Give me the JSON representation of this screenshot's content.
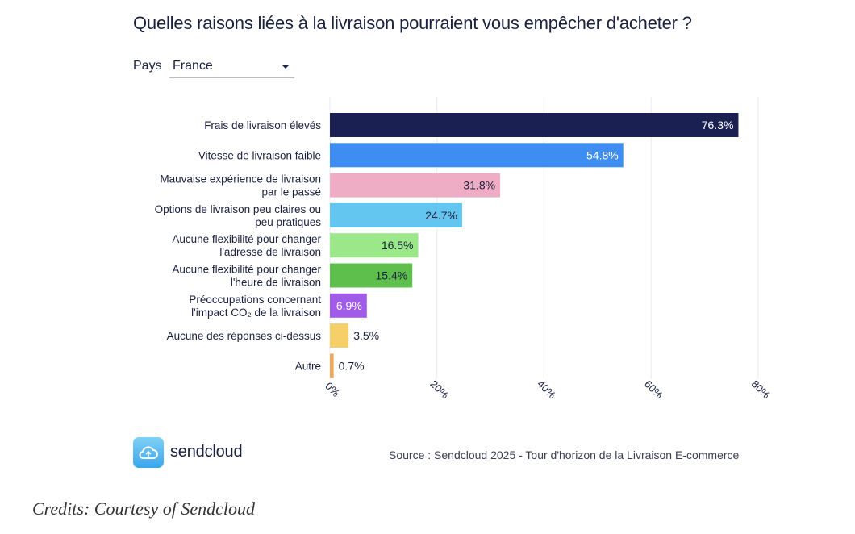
{
  "title": "Quelles raisons liées à la livraison pourraient vous empêcher d'acheter ?",
  "filter": {
    "label": "Pays",
    "value": "France"
  },
  "chart_data": {
    "type": "bar",
    "orientation": "horizontal",
    "categories": [
      [
        "Frais de livraison élevés"
      ],
      [
        "Vitesse de livraison faible"
      ],
      [
        "Mauvaise expérience de livraison",
        "par le passé"
      ],
      [
        "Options de livraison peu claires ou",
        "peu pratiques"
      ],
      [
        "Aucune flexibilité pour changer",
        "l'adresse de livraison"
      ],
      [
        "Aucune flexibilité pour changer",
        "l'heure de livraison"
      ],
      [
        "Préoccupations concernant",
        "l'impact CO₂ de la livraison"
      ],
      [
        "Aucune des réponses ci-dessus"
      ],
      [
        "Autre"
      ]
    ],
    "values": [
      76.3,
      54.8,
      31.8,
      24.7,
      16.5,
      15.4,
      6.9,
      3.5,
      0.7
    ],
    "value_labels": [
      "76.3%",
      "54.8%",
      "31.8%",
      "24.7%",
      "16.5%",
      "15.4%",
      "6.9%",
      "3.5%",
      "0.7%"
    ],
    "colors": [
      "#1a2152",
      "#3d8ef0",
      "#eeadc4",
      "#62c6f0",
      "#9be889",
      "#5fbf4c",
      "#a05ce8",
      "#f5cf67",
      "#f2a85a"
    ],
    "label_colors": [
      "#ffffff",
      "#ffffff",
      "#1b2140",
      "#1b2140",
      "#1b2140",
      "#1b2140",
      "#ffffff",
      "#1b2140",
      "#1b2140"
    ],
    "label_inside": [
      true,
      true,
      true,
      true,
      true,
      true,
      true,
      false,
      false
    ],
    "xlim": [
      0,
      80
    ],
    "ticks": [
      0,
      20,
      40,
      60,
      80
    ],
    "tick_labels": [
      "0%",
      "20%",
      "40%",
      "60%",
      "80%"
    ],
    "grid": true
  },
  "footer": {
    "brand": "sendcloud",
    "logo_icon": "cloud-icon",
    "source": "Source : Sendcloud 2025 - Tour d'horizon de la Livraison E-commerce"
  },
  "credits": "Credits: Courtesy of Sendcloud"
}
